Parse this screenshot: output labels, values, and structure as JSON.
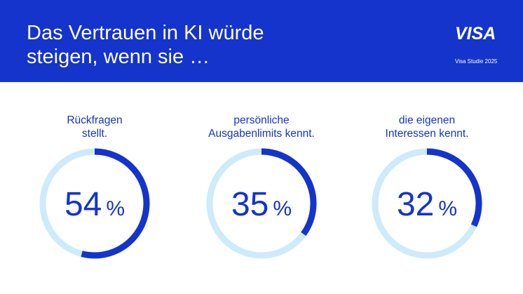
{
  "header": {
    "title_line1": "Das Vertrauen in KI würde",
    "title_line2": "steigen, wenn sie …",
    "logo": "VISA",
    "source": "Visa Studie 2025"
  },
  "colors": {
    "brand_blue": "#1434CB",
    "track_light_blue": "#CDEBFA",
    "background": "#FFFFFF"
  },
  "chart_data": {
    "type": "donut",
    "unit": "%",
    "items": [
      {
        "label_line1": "Rückfragen",
        "label_line2": "stellt.",
        "value": 54,
        "value_text": "54",
        "unit": "%"
      },
      {
        "label_line1": "persönliche",
        "label_line2": "Ausgabenlimits kennt.",
        "value": 35,
        "value_text": "35",
        "unit": "%"
      },
      {
        "label_line1": "die eigenen",
        "label_line2": "Interessen kennt.",
        "value": 32,
        "value_text": "32",
        "unit": "%"
      }
    ]
  }
}
